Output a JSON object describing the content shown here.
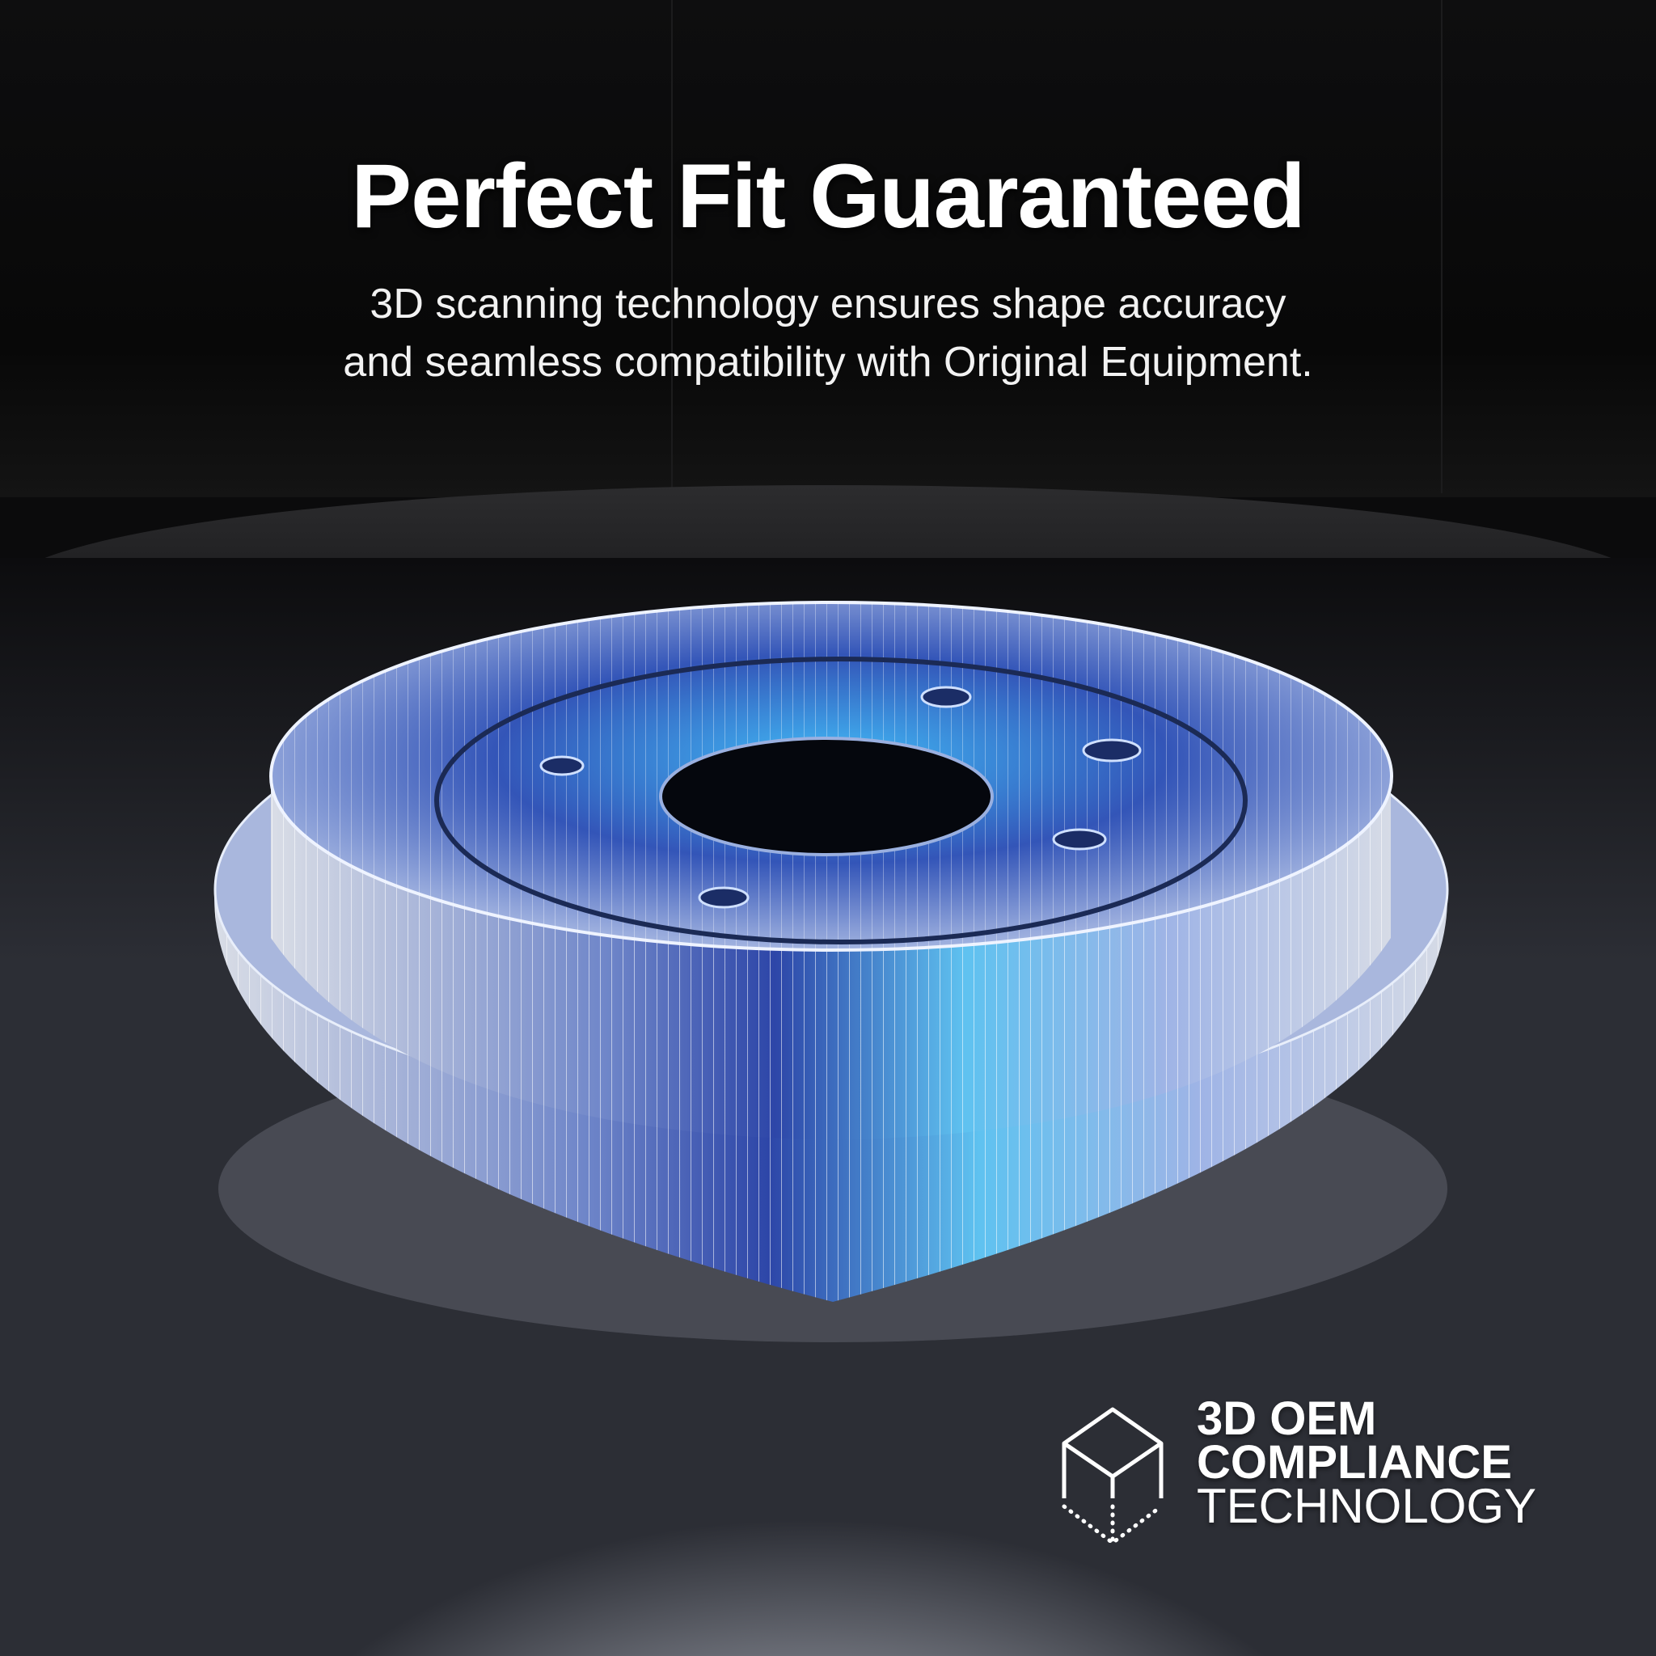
{
  "headline": "Perfect Fit Guaranteed",
  "subtitle": {
    "line1": "3D scanning technology ensures shape accuracy",
    "line2": "and seamless compatibility with Original Equipment."
  },
  "badge": {
    "icon": "wireframe-cube-icon",
    "line1": "3D OEM",
    "line2": "COMPLIANCE",
    "line3": "TECHNOLOGY"
  },
  "colors": {
    "accent": "#3aa6ff",
    "background": "#0b0b0c"
  }
}
